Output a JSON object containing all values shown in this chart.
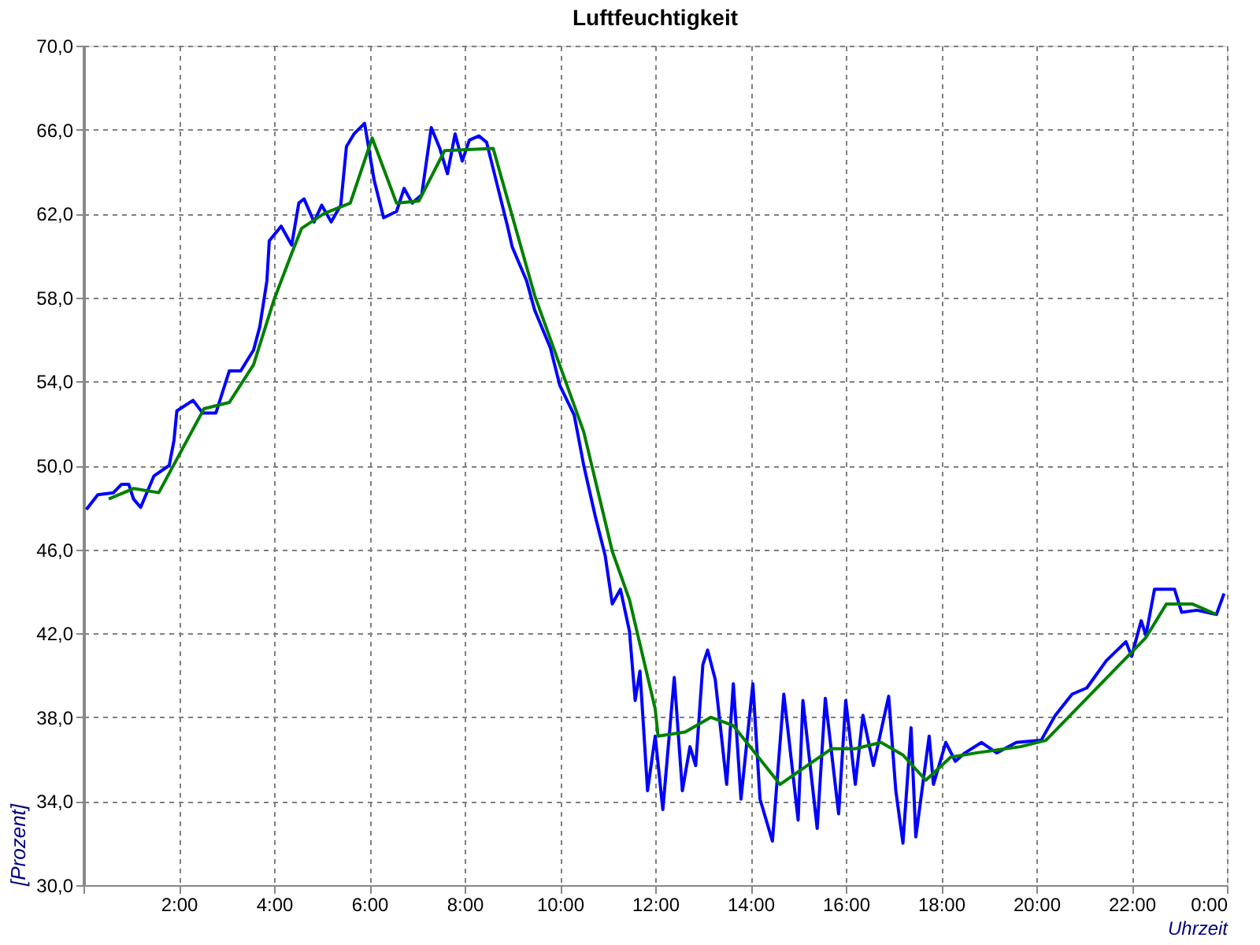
{
  "chart_data": {
    "type": "line",
    "title": "Luftfeuchtigkeit",
    "xlabel": "Uhrzeit",
    "ylabel": "[Prozent]",
    "xlim": [
      0,
      24
    ],
    "ylim": [
      30,
      70
    ],
    "xticks": [
      {
        "value": 0,
        "label": null
      },
      {
        "value": 2,
        "label": "2:00"
      },
      {
        "value": 4,
        "label": "4:00"
      },
      {
        "value": 6,
        "label": "6:00"
      },
      {
        "value": 8,
        "label": "8:00"
      },
      {
        "value": 10,
        "label": "10:00"
      },
      {
        "value": 12,
        "label": "12:00"
      },
      {
        "value": 14,
        "label": "14:00"
      },
      {
        "value": 16,
        "label": "16:00"
      },
      {
        "value": 18,
        "label": "18:00"
      },
      {
        "value": 20,
        "label": "20:00"
      },
      {
        "value": 22,
        "label": "22:00"
      },
      {
        "value": 24,
        "label": "0:00"
      }
    ],
    "yticks": [
      {
        "value": 30,
        "label": "30,0"
      },
      {
        "value": 34,
        "label": "34,0"
      },
      {
        "value": 38,
        "label": "38,0"
      },
      {
        "value": 42,
        "label": "42,0"
      },
      {
        "value": 46,
        "label": "46,0"
      },
      {
        "value": 50,
        "label": "50,0"
      },
      {
        "value": 54,
        "label": "54,0"
      },
      {
        "value": 58,
        "label": "58,0"
      },
      {
        "value": 62,
        "label": "62,0"
      },
      {
        "value": 66,
        "label": "66,0"
      },
      {
        "value": 70,
        "label": "70,0"
      }
    ],
    "grid": true,
    "marker": "none",
    "line_style": "solid",
    "series": [
      {
        "color": "#0000ff",
        "x": [
          0.06,
          0.3,
          0.63,
          0.8,
          0.95,
          1.05,
          1.2,
          1.48,
          1.8,
          1.9,
          1.96,
          2.3,
          2.5,
          2.78,
          3.06,
          3.3,
          3.57,
          3.7,
          3.85,
          3.9,
          4.15,
          4.37,
          4.52,
          4.63,
          4.84,
          5.0,
          5.2,
          5.4,
          5.52,
          5.68,
          5.9,
          6.1,
          6.3,
          6.57,
          6.73,
          6.9,
          7.1,
          7.3,
          7.48,
          7.64,
          7.8,
          7.95,
          8.1,
          8.3,
          8.46,
          8.68,
          8.9,
          9.0,
          9.3,
          9.47,
          9.8,
          10.0,
          10.3,
          10.5,
          10.74,
          10.95,
          11.1,
          11.27,
          11.46,
          11.58,
          11.68,
          11.84,
          12.0,
          12.16,
          12.4,
          12.57,
          12.73,
          12.85,
          13.0,
          13.1,
          13.26,
          13.5,
          13.64,
          13.8,
          14.05,
          14.2,
          14.46,
          14.7,
          15.0,
          15.1,
          15.4,
          15.57,
          15.85,
          16.0,
          16.2,
          16.36,
          16.58,
          16.9,
          17.05,
          17.2,
          17.37,
          17.47,
          17.75,
          17.84,
          18.1,
          18.3,
          18.5,
          18.85,
          19.17,
          19.58,
          20.1,
          20.4,
          20.75,
          21.06,
          21.47,
          21.88,
          22.0,
          22.2,
          22.3,
          22.48,
          22.9,
          23.05,
          23.37,
          23.78,
          23.94
        ],
        "values": [
          47.9,
          48.6,
          48.7,
          49.1,
          49.1,
          48.4,
          48.0,
          49.5,
          50.0,
          51.2,
          52.6,
          53.1,
          52.5,
          52.5,
          54.5,
          54.5,
          55.5,
          56.6,
          58.8,
          60.7,
          61.4,
          60.5,
          62.5,
          62.7,
          61.6,
          62.4,
          61.6,
          62.4,
          65.2,
          65.8,
          66.3,
          63.6,
          61.8,
          62.1,
          63.2,
          62.5,
          62.9,
          66.1,
          65.1,
          63.9,
          65.8,
          64.5,
          65.5,
          65.7,
          65.4,
          63.4,
          61.4,
          60.4,
          58.8,
          57.4,
          55.6,
          53.8,
          52.4,
          50.0,
          47.6,
          45.7,
          43.4,
          44.1,
          42.1,
          38.8,
          40.2,
          34.5,
          37.1,
          33.6,
          39.9,
          34.5,
          36.6,
          35.7,
          40.5,
          41.2,
          39.8,
          34.8,
          39.6,
          34.1,
          39.6,
          34.1,
          32.1,
          39.1,
          33.1,
          38.8,
          32.7,
          38.9,
          33.4,
          38.8,
          34.8,
          38.1,
          35.7,
          39.0,
          34.5,
          32.0,
          37.5,
          32.3,
          37.1,
          34.8,
          36.8,
          35.9,
          36.3,
          36.8,
          36.3,
          36.8,
          36.9,
          38.1,
          39.1,
          39.4,
          40.7,
          41.6,
          40.9,
          42.6,
          41.9,
          44.1,
          44.1,
          43.0,
          43.1,
          42.9,
          43.9
        ]
      },
      {
        "color": "#008000",
        "x": [
          0.53,
          1.05,
          1.58,
          2.53,
          3.06,
          3.57,
          4.0,
          4.37,
          4.58,
          5.05,
          5.6,
          6.06,
          6.57,
          7.04,
          7.58,
          8.6,
          9.47,
          10.5,
          11.1,
          11.46,
          12.0,
          12.06,
          12.63,
          13.17,
          13.64,
          14.62,
          15.7,
          16.2,
          16.74,
          17.2,
          17.68,
          18.2,
          18.73,
          19.67,
          20.2,
          22.3,
          22.73,
          23.27,
          23.78
        ],
        "values": [
          48.4,
          48.9,
          48.7,
          52.7,
          53.0,
          54.8,
          57.9,
          60.1,
          61.3,
          62.0,
          62.5,
          65.6,
          62.5,
          62.6,
          65.0,
          65.1,
          58.1,
          51.6,
          45.9,
          43.6,
          38.4,
          37.1,
          37.3,
          38.0,
          37.6,
          34.8,
          36.5,
          36.5,
          36.8,
          36.2,
          35.0,
          36.1,
          36.3,
          36.6,
          36.9,
          41.8,
          43.4,
          43.4,
          42.9
        ]
      }
    ]
  }
}
